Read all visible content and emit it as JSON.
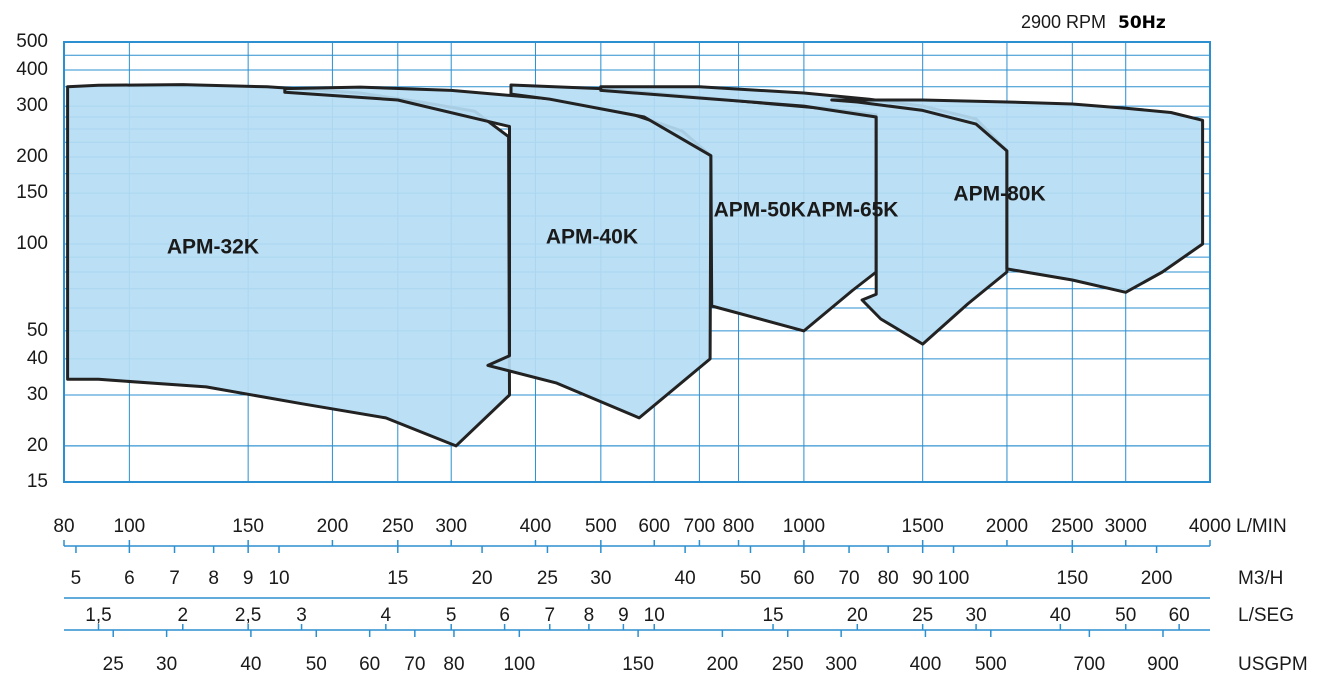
{
  "chart_data": {
    "type": "area",
    "title": "",
    "header": {
      "rpm": "2900 RPM",
      "freq": "50Hz"
    },
    "x_scale": "log",
    "y_scale": "log",
    "xlim": [
      80,
      4000
    ],
    "ylim": [
      15,
      500
    ],
    "colors": {
      "grid": "#2b8fd0",
      "fill": "#b5dcf3",
      "outline": "#222222"
    },
    "y_ticks": [
      15,
      20,
      30,
      40,
      50,
      100,
      150,
      200,
      300,
      400,
      500
    ],
    "y_tick_labels": [
      "15",
      "20",
      "30",
      "40",
      "50",
      "100",
      "150",
      "200",
      "300",
      "400",
      "500"
    ],
    "x_axes": [
      {
        "unit": "L/MIN",
        "ticks": [
          80,
          100,
          150,
          200,
          250,
          300,
          400,
          500,
          600,
          700,
          800,
          1000,
          1500,
          2000,
          2500,
          3000,
          4000
        ],
        "labels": [
          "80",
          "100",
          "150",
          "200",
          "250",
          "300",
          "400",
          "500",
          "600",
          "700",
          "800",
          "1000",
          "1500",
          "2000",
          "2500",
          "3000",
          "4000"
        ]
      },
      {
        "unit": "M3/H",
        "ticks": [
          5,
          6,
          7,
          8,
          9,
          10,
          15,
          20,
          25,
          30,
          40,
          50,
          60,
          70,
          80,
          90,
          100,
          150,
          200
        ],
        "labels": [
          "5",
          "6",
          "7",
          "8",
          "9",
          "10",
          "15",
          "20",
          "25",
          "30",
          "40",
          "50",
          "60",
          "70",
          "80",
          "90",
          "100",
          "150",
          "200"
        ]
      },
      {
        "unit": "L/SEG",
        "ticks": [
          1.5,
          2,
          2.5,
          3,
          4,
          5,
          6,
          7,
          8,
          9,
          10,
          15,
          20,
          25,
          30,
          40,
          50,
          60
        ],
        "labels": [
          "1,5",
          "2",
          "2,5",
          "3",
          "4",
          "5",
          "6",
          "7",
          "8",
          "9",
          "10",
          "15",
          "20",
          "25",
          "30",
          "40",
          "50",
          "60"
        ]
      },
      {
        "unit": "USGPM",
        "ticks": [
          25,
          30,
          40,
          50,
          60,
          70,
          80,
          100,
          150,
          200,
          250,
          300,
          400,
          500,
          700,
          900
        ],
        "labels": [
          "25",
          "30",
          "40",
          "50",
          "60",
          "70",
          "80",
          "100",
          "150",
          "200",
          "250",
          "300",
          "400",
          "500",
          "700",
          "900"
        ]
      }
    ],
    "series": [
      {
        "name": "APM-32K",
        "label_at": [
          133,
          97
        ],
        "points": [
          [
            81,
            350
          ],
          [
            90,
            354
          ],
          [
            120,
            356
          ],
          [
            160,
            350
          ],
          [
            220,
            333
          ],
          [
            270,
            310
          ],
          [
            325,
            288
          ],
          [
            365,
            235
          ],
          [
            366,
            30
          ],
          [
            305,
            20
          ],
          [
            240,
            25
          ],
          [
            180,
            28
          ],
          [
            130,
            32
          ],
          [
            90,
            34
          ],
          [
            81,
            34
          ]
        ]
      },
      {
        "name": "APM-40K",
        "label_at": [
          485,
          105
        ],
        "points": [
          [
            170,
            345
          ],
          [
            220,
            349
          ],
          [
            300,
            340
          ],
          [
            420,
            318
          ],
          [
            560,
            280
          ],
          [
            660,
            246
          ],
          [
            728,
            202
          ],
          [
            726,
            40
          ],
          [
            570,
            25
          ],
          [
            430,
            33
          ],
          [
            340,
            38
          ],
          [
            366,
            41
          ],
          [
            366,
            255
          ],
          [
            250,
            315
          ],
          [
            170,
            335
          ]
        ]
      },
      {
        "name": "APM-50K",
        "label_at": [
          860,
          130
        ],
        "points": [
          [
            368,
            355
          ],
          [
            500,
            345
          ],
          [
            700,
            322
          ],
          [
            900,
            305
          ],
          [
            1100,
            293
          ],
          [
            1280,
            280
          ],
          [
            1280,
            80
          ],
          [
            1180,
            69
          ],
          [
            1000,
            50
          ],
          [
            730,
            61
          ],
          [
            728,
            202
          ],
          [
            580,
            275
          ],
          [
            420,
            317
          ],
          [
            368,
            330
          ]
        ]
      },
      {
        "name": "APM-65K",
        "label_at": [
          1180,
          130
        ],
        "points": [
          [
            500,
            350
          ],
          [
            700,
            350
          ],
          [
            1000,
            333
          ],
          [
            1250,
            317
          ],
          [
            1500,
            300
          ],
          [
            1800,
            271
          ],
          [
            2000,
            210
          ],
          [
            2000,
            80
          ],
          [
            1750,
            62
          ],
          [
            1500,
            45
          ],
          [
            1300,
            55
          ],
          [
            1220,
            64
          ],
          [
            1280,
            67
          ],
          [
            1280,
            275
          ],
          [
            1000,
            300
          ],
          [
            700,
            320
          ],
          [
            500,
            340
          ]
        ]
      },
      {
        "name": "APM-80K",
        "label_at": [
          1950,
          148
        ],
        "points": [
          [
            1100,
            315
          ],
          [
            1500,
            315
          ],
          [
            2000,
            310
          ],
          [
            2500,
            305
          ],
          [
            3000,
            295
          ],
          [
            3500,
            285
          ],
          [
            3900,
            268
          ],
          [
            3900,
            100
          ],
          [
            3400,
            80
          ],
          [
            3000,
            68
          ],
          [
            2500,
            75
          ],
          [
            2000,
            82
          ],
          [
            2000,
            210
          ],
          [
            1800,
            260
          ],
          [
            1500,
            290
          ],
          [
            1200,
            310
          ]
        ]
      }
    ]
  }
}
